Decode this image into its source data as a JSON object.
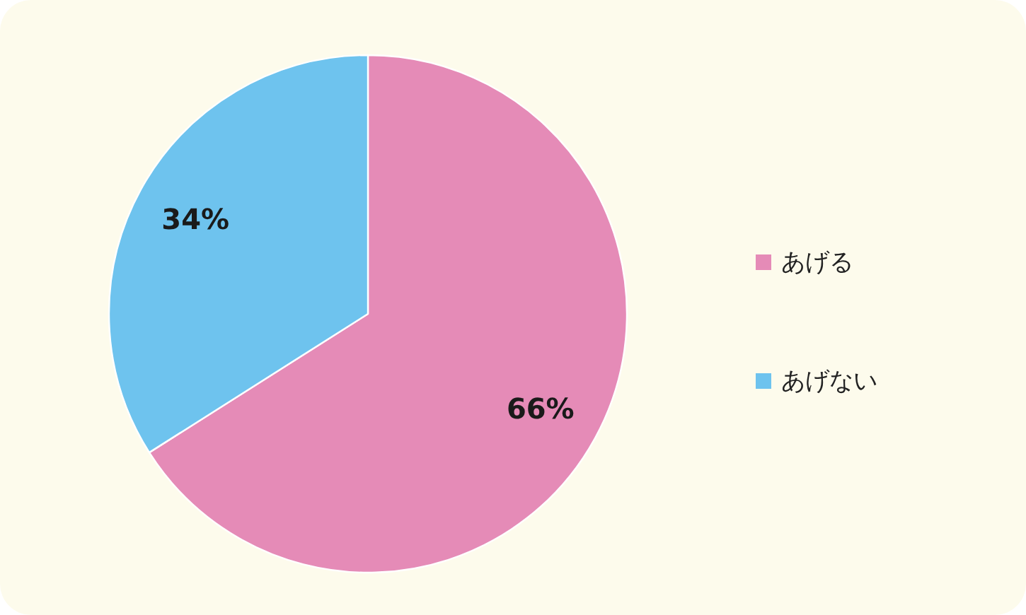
{
  "chart_data": {
    "type": "pie",
    "categories": [
      "あげる",
      "あげない"
    ],
    "values": [
      66,
      34
    ],
    "colors": [
      "#e58bb7",
      "#6ec3ee"
    ],
    "value_labels": [
      "66%",
      "34%"
    ],
    "legend": "right"
  }
}
